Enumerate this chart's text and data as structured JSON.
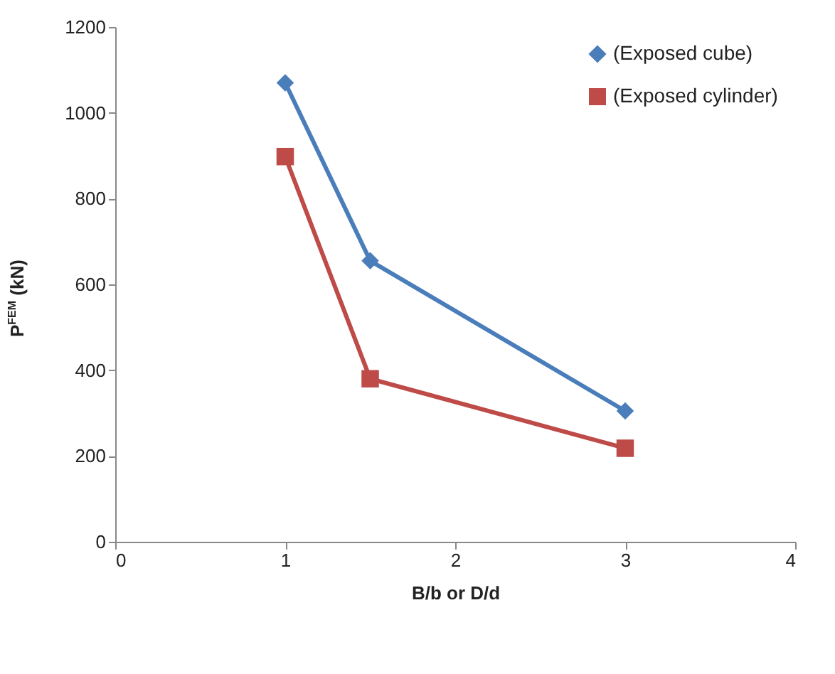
{
  "chart_data": {
    "type": "line",
    "xlabel": "B/b or D/d",
    "ylabel": "P$^{FEM}$ (kN)",
    "x": [
      1,
      1.5,
      3
    ],
    "series": [
      {
        "name": "(Exposed cube)",
        "color": "#4a7ebb",
        "marker": "diamond",
        "values": [
          1070,
          655,
          305
        ]
      },
      {
        "name": "(Exposed cylinder)",
        "color": "#be4b48",
        "marker": "square",
        "values": [
          898,
          380,
          218
        ]
      }
    ],
    "xlim": [
      0,
      4
    ],
    "xticks": [
      0,
      1,
      2,
      3,
      4
    ],
    "ylim": [
      0,
      1200
    ],
    "yticks": [
      0,
      200,
      400,
      600,
      800,
      1000,
      1200
    ],
    "grid": false,
    "legend": "top right",
    "line_style": "solid"
  }
}
